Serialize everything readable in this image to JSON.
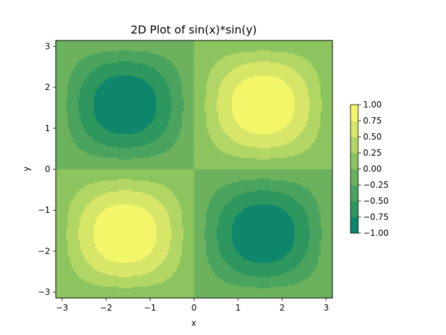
{
  "chart_data": {
    "type": "heatmap",
    "plot_kind": "filled-contour",
    "function": "sin(x)*sin(y)",
    "title": "2D Plot of sin(x)*sin(y)",
    "xlabel": "x",
    "ylabel": "y",
    "xlim": [
      -3.14159,
      3.14159
    ],
    "ylim": [
      -3.14159,
      3.14159
    ],
    "xticks": [
      -3,
      -2,
      -1,
      0,
      1,
      2,
      3
    ],
    "yticks": [
      -3,
      -2,
      -1,
      0,
      1,
      2,
      3
    ],
    "xtick_labels": [
      "−3",
      "−2",
      "−1",
      "0",
      "1",
      "2",
      "3"
    ],
    "ytick_labels": [
      "−3",
      "−2",
      "−1",
      "0",
      "1",
      "2",
      "3"
    ],
    "contour_levels": [
      -1.0,
      -0.75,
      -0.5,
      -0.25,
      0.0,
      0.25,
      0.5,
      0.75,
      1.0
    ],
    "level_colors": [
      "#0f866b",
      "#2d975e",
      "#4aa35e",
      "#6cb25e",
      "#8cc45f",
      "#b2d665",
      "#d7e669",
      "#f4f66a"
    ],
    "colorbar": {
      "ticks": [
        1.0,
        0.75,
        0.5,
        0.25,
        0.0,
        -0.25,
        -0.5,
        -0.75,
        -1.0
      ],
      "tick_labels": [
        "1.00",
        "0.75",
        "0.50",
        "0.25",
        "0.00",
        "−0.25",
        "−0.50",
        "−0.75",
        "−1.00"
      ],
      "colormap": "summer-like (green to yellow)"
    },
    "grid": false,
    "extrema": [
      {
        "x": 1.5708,
        "y": 1.5708,
        "value": 1.0
      },
      {
        "x": -1.5708,
        "y": -1.5708,
        "value": 1.0
      },
      {
        "x": -1.5708,
        "y": 1.5708,
        "value": -1.0
      },
      {
        "x": 1.5708,
        "y": -1.5708,
        "value": -1.0
      }
    ]
  }
}
